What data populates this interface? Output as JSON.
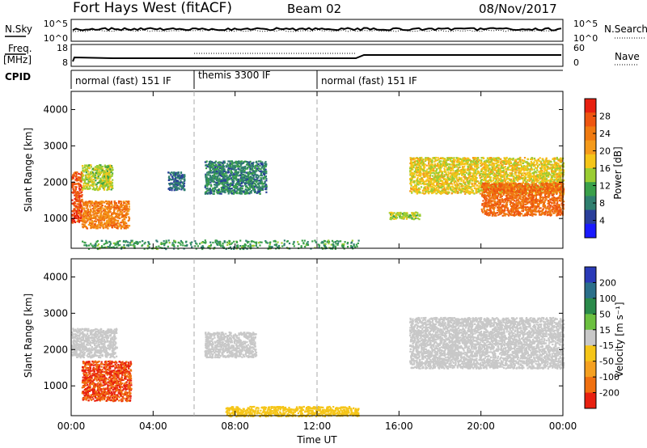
{
  "header": {
    "station": "Fort Hays West (fitACF)",
    "beam": "Beam 02",
    "date": "08/Nov/2017"
  },
  "summary_panel": {
    "left_label": "N.Sky",
    "left_ticks": [
      "10^5",
      "10^0"
    ],
    "right_label": "N.Search",
    "right_ticks": [
      "10^5",
      "10^0"
    ]
  },
  "freq_panel": {
    "left_label_top": "Freq.",
    "left_label_bottom": "[MHz]",
    "left_ticks": [
      "18",
      "8"
    ],
    "right_label": "Nave",
    "right_ticks": [
      "60",
      "0"
    ]
  },
  "cpid": {
    "label": "CPID",
    "segments": [
      {
        "name": "normal (fast) 151 IF",
        "start_hour": 0,
        "end_hour": 6
      },
      {
        "name": "themis 3300 IF",
        "start_hour": 6,
        "end_hour": 12
      },
      {
        "name": "normal (fast) 151 IF",
        "start_hour": 12,
        "end_hour": 24
      }
    ]
  },
  "axes": {
    "xlabel": "Time UT",
    "xticks": [
      "00:00",
      "04:00",
      "08:00",
      "12:00",
      "16:00",
      "20:00",
      "00:00"
    ],
    "x_range_hours": [
      0,
      24
    ],
    "ylabel": "Slant Range [km]",
    "yticks": [
      "1000",
      "2000",
      "3000",
      "4000"
    ],
    "y_range_km": [
      180,
      4500
    ]
  },
  "colorbars": {
    "power": {
      "label": "Power [dB]",
      "ticks": [
        "4",
        "8",
        "12",
        "16",
        "20",
        "24",
        "28"
      ],
      "colors": [
        "#1a1aff",
        "#2a3f9a",
        "#2f7f6f",
        "#3aa04a",
        "#9acd32",
        "#f5c518",
        "#f59a1a",
        "#f07a10",
        "#ee5510",
        "#e82010"
      ]
    },
    "velocity": {
      "label": "Velocity [m s⁻¹]",
      "ticks": [
        "200",
        "100",
        "50",
        "15",
        "-15",
        "-50",
        "-100",
        "-200"
      ],
      "colors": [
        "#2a3ab8",
        "#2a6f8a",
        "#2a8a4a",
        "#6cc040",
        "#c8c8c8",
        "#f5c518",
        "#f5a020",
        "#f07010",
        "#e82010"
      ]
    }
  },
  "chart_data": [
    {
      "type": "heatmap",
      "title": "Power",
      "xlabel": "Time UT",
      "ylabel": "Slant Range [km]",
      "xlim_hours": [
        0,
        24
      ],
      "ylim_km": [
        180,
        4500
      ],
      "regions": [
        {
          "x": [
            0.0,
            0.5
          ],
          "y_km": [
            900,
            2300
          ],
          "power_db": 26
        },
        {
          "x": [
            0.5,
            2.0
          ],
          "y_km": [
            1800,
            2500
          ],
          "power_db": 14
        },
        {
          "x": [
            0.5,
            2.8
          ],
          "y_km": [
            750,
            1500
          ],
          "power_db": 22
        },
        {
          "x": [
            4.7,
            5.5
          ],
          "y_km": [
            1800,
            2300
          ],
          "power_db": 6
        },
        {
          "x": [
            6.5,
            9.5
          ],
          "y_km": [
            1700,
            2600
          ],
          "power_db": 8
        },
        {
          "x": [
            15.5,
            17.0
          ],
          "y_km": [
            1000,
            1200
          ],
          "power_db": 14
        },
        {
          "x": [
            16.5,
            24.0
          ],
          "y_km": [
            1700,
            2700
          ],
          "power_db": 16
        },
        {
          "x": [
            20.0,
            24.0
          ],
          "y_km": [
            1100,
            2000
          ],
          "power_db": 24
        }
      ]
    },
    {
      "type": "heatmap",
      "title": "Velocity",
      "xlabel": "Time UT",
      "ylabel": "Slant Range [km]",
      "xlim_hours": [
        0,
        24
      ],
      "ylim_km": [
        180,
        4500
      ],
      "regions": [
        {
          "x": [
            0.0,
            2.2
          ],
          "y_km": [
            1800,
            2600
          ],
          "velocity_ms": 0
        },
        {
          "x": [
            0.5,
            2.9
          ],
          "y_km": [
            600,
            1700
          ],
          "velocity_ms": -200
        },
        {
          "x": [
            6.5,
            9.0
          ],
          "y_km": [
            1800,
            2500
          ],
          "velocity_ms": 0
        },
        {
          "x": [
            16.5,
            24.0
          ],
          "y_km": [
            1500,
            2900
          ],
          "velocity_ms": 0
        },
        {
          "x": [
            7.5,
            14.0
          ],
          "y_km": [
            180,
            450
          ],
          "velocity_ms": -30
        }
      ]
    }
  ]
}
